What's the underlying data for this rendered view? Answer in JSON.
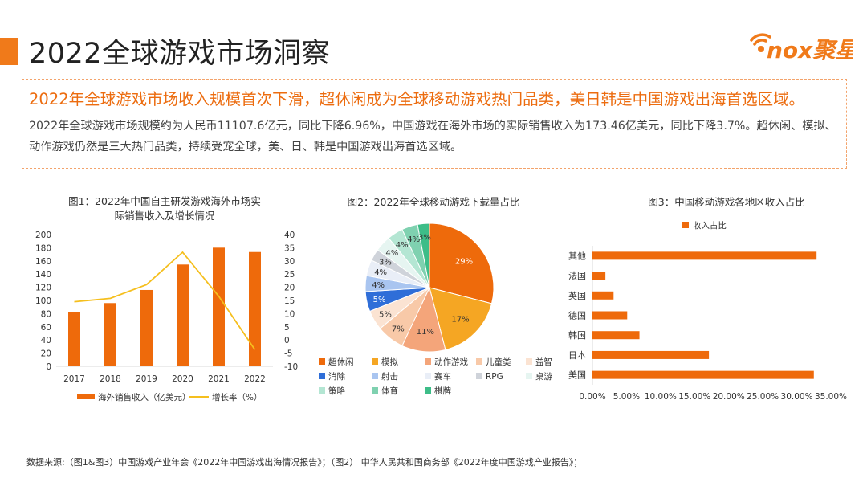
{
  "page": {
    "title": "2022全球游戏市场洞察",
    "logo_text": "nox聚星",
    "headline": "2022年全球游戏市场收入规模首次下滑，超休闲成为全球移动游戏热门品类，美日韩是中国游戏出海首选区域。",
    "body": "2022年全球游戏市场规模约为人民币11107.6亿元，同比下降6.96%，中国游戏在海外市场的实际销售收入为173.46亿美元，同比下降3.7%。超休闲、模拟、动作游戏仍然是三大热门品类，持续受宠全球，美、日、韩是中国游戏出海首选区域。",
    "source": "数据来源:（图1&图3）中国游戏产业年会《2022年中国游戏出海情况报告》；（图2） 中华人民共和国商务部《2022年度中国游戏产业报告》；"
  },
  "colors": {
    "accent": "#f07a1a",
    "bar": "#ee6a0b",
    "line": "#f5bf1e",
    "headline": "#ec6c0f"
  },
  "chart_data": [
    {
      "type": "bar",
      "title_line1": "图1：2022年中国自主研发游戏海外市场实",
      "title_line2": "际销售收入及增长情况",
      "categories": [
        "2017",
        "2018",
        "2019",
        "2020",
        "2021",
        "2022"
      ],
      "series": [
        {
          "name": "海外销售收入（亿美元）",
          "type": "bar",
          "axis": "left",
          "values": [
            82.8,
            96.0,
            115.9,
            154.5,
            180.1,
            173.5
          ]
        },
        {
          "name": "增长率（%）",
          "type": "line",
          "axis": "right",
          "values": [
            14.5,
            15.8,
            21.0,
            33.3,
            16.6,
            -3.7
          ]
        }
      ],
      "y_left": {
        "min": 0,
        "max": 200,
        "ticks": [
          "0",
          "20",
          "40",
          "60",
          "80",
          "100",
          "120",
          "140",
          "160",
          "180",
          "200"
        ]
      },
      "y_right": {
        "min": -10,
        "max": 40,
        "ticks": [
          "-10",
          "-5",
          "0",
          "5",
          "10",
          "15",
          "20",
          "25",
          "30",
          "35",
          "40"
        ]
      }
    },
    {
      "type": "pie",
      "title": "图2：2022年全球移动游戏下载量占比",
      "slices": [
        {
          "name": "超休闲",
          "value": 29,
          "label": "29%",
          "color": "#ee6a0b"
        },
        {
          "name": "模拟",
          "value": 17,
          "label": "17%",
          "color": "#f5a623"
        },
        {
          "name": "动作游戏",
          "value": 11,
          "label": "11%",
          "color": "#f4a57a"
        },
        {
          "name": "儿童类",
          "value": 7,
          "label": "7%",
          "color": "#f8c9a8"
        },
        {
          "name": "益智",
          "value": 5,
          "label": "5%",
          "color": "#fbe3d2"
        },
        {
          "name": "消除",
          "value": 5,
          "label": "5%",
          "color": "#2f6ed8"
        },
        {
          "name": "射击",
          "value": 4,
          "label": "4%",
          "color": "#a9c5f0"
        },
        {
          "name": "赛车",
          "value": 4,
          "label": "4%",
          "color": "#e9eef7"
        },
        {
          "name": "RPG",
          "value": 3,
          "label": "3%",
          "color": "#cfd3da"
        },
        {
          "name": "桌游",
          "value": 4,
          "label": "4%",
          "color": "#e6f5f1"
        },
        {
          "name": "策略",
          "value": 4,
          "label": "4%",
          "color": "#b4e6d3"
        },
        {
          "name": "体育",
          "value": 4,
          "label": "4%",
          "color": "#7fd1b0"
        },
        {
          "name": "棋牌",
          "value": 3,
          "label": "3%",
          "color": "#3dbd88"
        }
      ]
    },
    {
      "type": "bar",
      "orientation": "horizontal",
      "title": "图3：中国移动游戏各地区收入占比",
      "series_name": "收入占比",
      "categories": [
        "其他",
        "法国",
        "英国",
        "德国",
        "韩国",
        "日本",
        "美国"
      ],
      "values": [
        0.329,
        0.019,
        0.031,
        0.051,
        0.069,
        0.171,
        0.325
      ],
      "xlim": [
        0,
        0.35
      ],
      "ticks": [
        "0.00%",
        "5.00%",
        "10.00%",
        "15.00%",
        "20.00%",
        "25.00%",
        "30.00%",
        "35.00%"
      ]
    }
  ]
}
